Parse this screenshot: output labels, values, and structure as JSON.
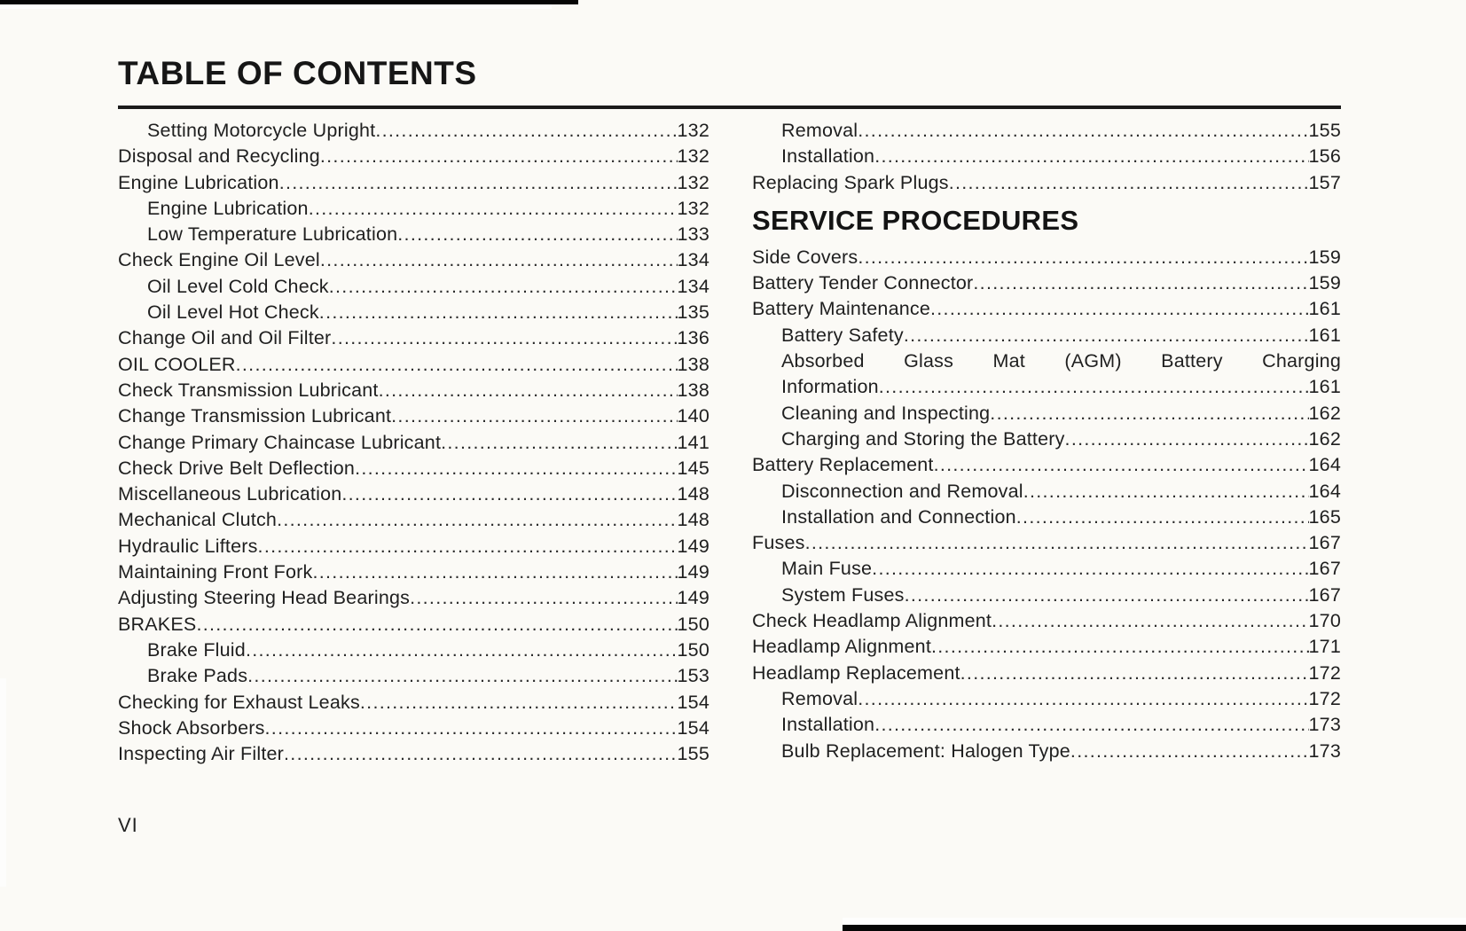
{
  "document": {
    "title": "TABLE OF CONTENTS",
    "folio": "VI"
  },
  "colors": {
    "page_background": "#fbfaf6",
    "text": "#1f1f1f",
    "scan_bar": "#060606",
    "rule": "#1b1b1b"
  },
  "columns": {
    "left": {
      "items": [
        {
          "label": "Setting Motorcycle Upright",
          "page": "132",
          "indent": 1
        },
        {
          "label": "Disposal and Recycling",
          "page": "132",
          "indent": 0
        },
        {
          "label": "Engine Lubrication",
          "page": "132",
          "indent": 0
        },
        {
          "label": "Engine Lubrication",
          "page": "132",
          "indent": 1
        },
        {
          "label": "Low Temperature Lubrication",
          "page": "133",
          "indent": 1
        },
        {
          "label": "Check Engine Oil Level",
          "page": "134",
          "indent": 0
        },
        {
          "label": "Oil Level Cold Check",
          "page": "134",
          "indent": 1
        },
        {
          "label": "Oil Level Hot Check",
          "page": "135",
          "indent": 1
        },
        {
          "label": "Change Oil and Oil Filter",
          "page": "136",
          "indent": 0
        },
        {
          "label": "OIL COOLER",
          "page": "138",
          "indent": 0
        },
        {
          "label": "Check Transmission Lubricant",
          "page": "138",
          "indent": 0
        },
        {
          "label": "Change Transmission Lubricant",
          "page": "140",
          "indent": 0
        },
        {
          "label": "Change Primary Chaincase Lubricant",
          "page": "141",
          "indent": 0
        },
        {
          "label": "Check Drive Belt Deflection",
          "page": "145",
          "indent": 0
        },
        {
          "label": "Miscellaneous Lubrication",
          "page": "148",
          "indent": 0
        },
        {
          "label": "Mechanical Clutch",
          "page": "148",
          "indent": 0
        },
        {
          "label": "Hydraulic Lifters",
          "page": "149",
          "indent": 0
        },
        {
          "label": "Maintaining Front Fork",
          "page": "149",
          "indent": 0
        },
        {
          "label": "Adjusting Steering Head Bearings",
          "page": "149",
          "indent": 0
        },
        {
          "label": "BRAKES",
          "page": "150",
          "indent": 0
        },
        {
          "label": "Brake Fluid",
          "page": "150",
          "indent": 1
        },
        {
          "label": "Brake Pads",
          "page": "153",
          "indent": 1
        },
        {
          "label": "Checking for Exhaust Leaks",
          "page": "154",
          "indent": 0
        },
        {
          "label": "Shock Absorbers",
          "page": "154",
          "indent": 0
        },
        {
          "label": "Inspecting Air Filter",
          "page": "155",
          "indent": 0
        }
      ]
    },
    "right": {
      "items": [
        {
          "label": "Removal",
          "page": "155",
          "indent": 1
        },
        {
          "label": "Installation",
          "page": "156",
          "indent": 1
        },
        {
          "label": "Replacing Spark Plugs",
          "page": "157",
          "indent": 0
        },
        {
          "heading": "SERVICE PROCEDURES"
        },
        {
          "label": "Side Covers",
          "page": "159",
          "indent": 0
        },
        {
          "label": "Battery Tender Connector",
          "page": "159",
          "indent": 0
        },
        {
          "label": "Battery Maintenance",
          "page": "161",
          "indent": 0
        },
        {
          "label": "Battery Safety",
          "page": "161",
          "indent": 1
        },
        {
          "wrap_line": "Absorbed Glass Mat (AGM) Battery Charging",
          "label": "Information",
          "page": "161",
          "indent": 1
        },
        {
          "label": "Cleaning and Inspecting",
          "page": "162",
          "indent": 1
        },
        {
          "label": "Charging and Storing the Battery",
          "page": "162",
          "indent": 1
        },
        {
          "label": "Battery Replacement",
          "page": "164",
          "indent": 0
        },
        {
          "label": "Disconnection and Removal",
          "page": "164",
          "indent": 1
        },
        {
          "label": "Installation and Connection",
          "page": "165",
          "indent": 1
        },
        {
          "label": "Fuses",
          "page": "167",
          "indent": 0
        },
        {
          "label": "Main Fuse",
          "page": "167",
          "indent": 1
        },
        {
          "label": "System Fuses",
          "page": "167",
          "indent": 1
        },
        {
          "label": "Check Headlamp Alignment",
          "page": "170",
          "indent": 0
        },
        {
          "label": "Headlamp Alignment",
          "page": "171",
          "indent": 0
        },
        {
          "label": "Headlamp Replacement",
          "page": "172",
          "indent": 0
        },
        {
          "label": "Removal",
          "page": "172",
          "indent": 1
        },
        {
          "label": "Installation",
          "page": "173",
          "indent": 1
        },
        {
          "label": "Bulb Replacement: Halogen Type",
          "page": "173",
          "indent": 1
        }
      ]
    }
  }
}
